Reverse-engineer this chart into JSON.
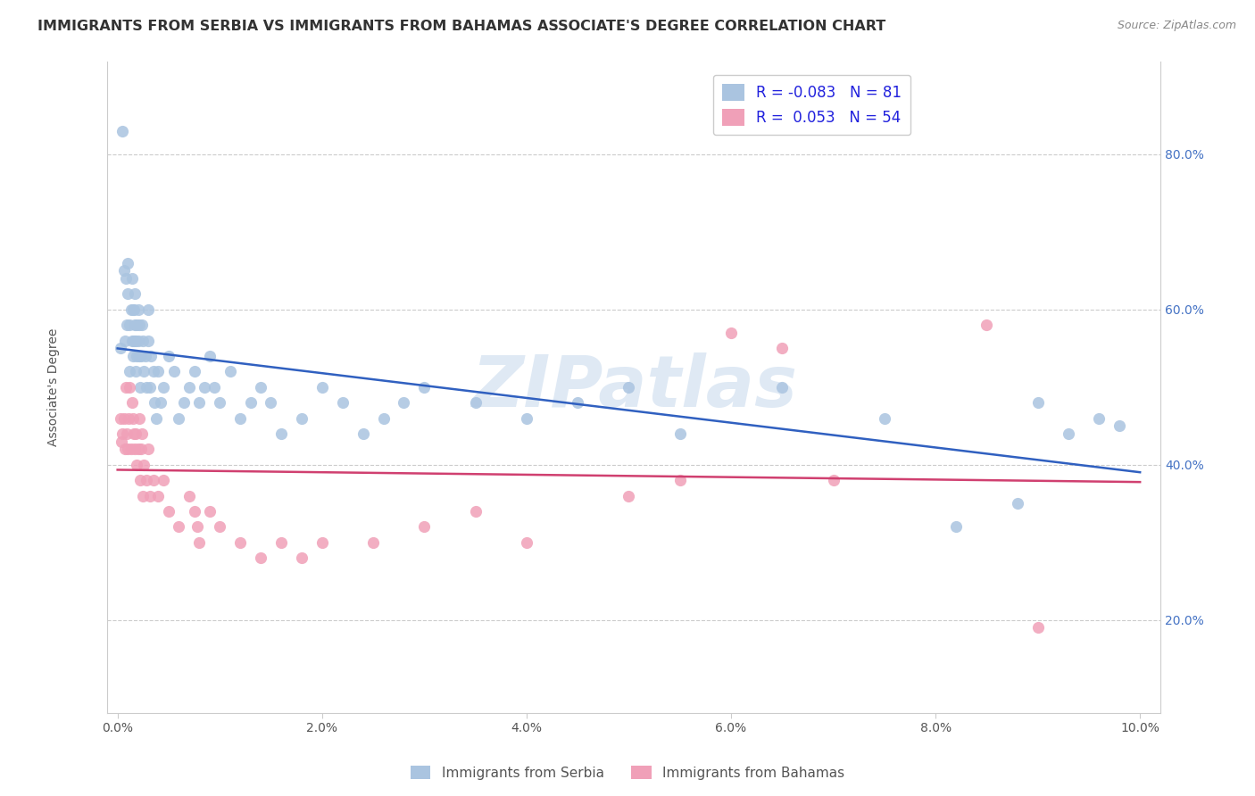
{
  "title": "IMMIGRANTS FROM SERBIA VS IMMIGRANTS FROM BAHAMAS ASSOCIATE'S DEGREE CORRELATION CHART",
  "source": "Source: ZipAtlas.com",
  "ylabel": "Associate's Degree",
  "legend_serbia": "Immigrants from Serbia",
  "legend_bahamas": "Immigrants from Bahamas",
  "R_serbia": -0.083,
  "N_serbia": 81,
  "R_bahamas": 0.053,
  "N_bahamas": 54,
  "color_serbia": "#aac4e0",
  "color_bahamas": "#f0a0b8",
  "color_serbia_line": "#3060c0",
  "color_bahamas_line": "#d04070",
  "watermark": "ZIPatlas",
  "serbia_x": [
    0.0003,
    0.0005,
    0.0006,
    0.0007,
    0.0008,
    0.0009,
    0.001,
    0.001,
    0.0012,
    0.0012,
    0.0013,
    0.0014,
    0.0014,
    0.0015,
    0.0015,
    0.0016,
    0.0016,
    0.0017,
    0.0017,
    0.0018,
    0.0018,
    0.0019,
    0.0019,
    0.002,
    0.002,
    0.0021,
    0.0021,
    0.0022,
    0.0023,
    0.0024,
    0.0025,
    0.0026,
    0.0027,
    0.0028,
    0.003,
    0.003,
    0.0032,
    0.0033,
    0.0035,
    0.0036,
    0.0038,
    0.004,
    0.0042,
    0.0045,
    0.005,
    0.0055,
    0.006,
    0.0065,
    0.007,
    0.0075,
    0.008,
    0.0085,
    0.009,
    0.0095,
    0.01,
    0.011,
    0.012,
    0.013,
    0.014,
    0.015,
    0.016,
    0.018,
    0.02,
    0.022,
    0.024,
    0.026,
    0.028,
    0.03,
    0.035,
    0.04,
    0.045,
    0.05,
    0.055,
    0.065,
    0.075,
    0.082,
    0.088,
    0.09,
    0.093,
    0.096,
    0.098
  ],
  "serbia_y": [
    0.55,
    0.83,
    0.65,
    0.56,
    0.64,
    0.58,
    0.62,
    0.66,
    0.58,
    0.52,
    0.6,
    0.64,
    0.56,
    0.6,
    0.54,
    0.6,
    0.56,
    0.62,
    0.58,
    0.52,
    0.56,
    0.58,
    0.54,
    0.56,
    0.6,
    0.54,
    0.58,
    0.5,
    0.54,
    0.58,
    0.56,
    0.52,
    0.54,
    0.5,
    0.56,
    0.6,
    0.5,
    0.54,
    0.52,
    0.48,
    0.46,
    0.52,
    0.48,
    0.5,
    0.54,
    0.52,
    0.46,
    0.48,
    0.5,
    0.52,
    0.48,
    0.5,
    0.54,
    0.5,
    0.48,
    0.52,
    0.46,
    0.48,
    0.5,
    0.48,
    0.44,
    0.46,
    0.5,
    0.48,
    0.44,
    0.46,
    0.48,
    0.5,
    0.48,
    0.46,
    0.48,
    0.5,
    0.44,
    0.5,
    0.46,
    0.32,
    0.35,
    0.48,
    0.44,
    0.46,
    0.45
  ],
  "bahamas_x": [
    0.0003,
    0.0004,
    0.0005,
    0.0006,
    0.0007,
    0.0008,
    0.0009,
    0.001,
    0.0011,
    0.0012,
    0.0013,
    0.0014,
    0.0015,
    0.0016,
    0.0017,
    0.0018,
    0.0019,
    0.002,
    0.0021,
    0.0022,
    0.0023,
    0.0024,
    0.0025,
    0.0026,
    0.0028,
    0.003,
    0.0032,
    0.0035,
    0.004,
    0.0045,
    0.005,
    0.006,
    0.007,
    0.0075,
    0.0078,
    0.008,
    0.009,
    0.01,
    0.012,
    0.014,
    0.016,
    0.018,
    0.02,
    0.025,
    0.03,
    0.035,
    0.04,
    0.05,
    0.055,
    0.06,
    0.065,
    0.07,
    0.085,
    0.09
  ],
  "bahamas_y": [
    0.46,
    0.43,
    0.44,
    0.46,
    0.42,
    0.5,
    0.44,
    0.42,
    0.46,
    0.5,
    0.42,
    0.48,
    0.46,
    0.44,
    0.42,
    0.44,
    0.4,
    0.42,
    0.46,
    0.38,
    0.42,
    0.44,
    0.36,
    0.4,
    0.38,
    0.42,
    0.36,
    0.38,
    0.36,
    0.38,
    0.34,
    0.32,
    0.36,
    0.34,
    0.32,
    0.3,
    0.34,
    0.32,
    0.3,
    0.28,
    0.3,
    0.28,
    0.3,
    0.3,
    0.32,
    0.34,
    0.3,
    0.36,
    0.38,
    0.57,
    0.55,
    0.38,
    0.58,
    0.19
  ],
  "xlim": [
    -0.001,
    0.102
  ],
  "ylim": [
    0.08,
    0.92
  ],
  "yticks": [
    0.2,
    0.4,
    0.6,
    0.8
  ],
  "ytick_labels": [
    "20.0%",
    "40.0%",
    "60.0%",
    "80.0%"
  ],
  "xticks": [
    0.0,
    0.02,
    0.04,
    0.06,
    0.08,
    0.1
  ],
  "xtick_labels": [
    "0.0%",
    "2.0%",
    "4.0%",
    "6.0%",
    "8.0%",
    "10.0%"
  ],
  "grid_color": "#cccccc",
  "title_fontsize": 11.5,
  "axis_fontsize": 10,
  "tick_fontsize": 10
}
